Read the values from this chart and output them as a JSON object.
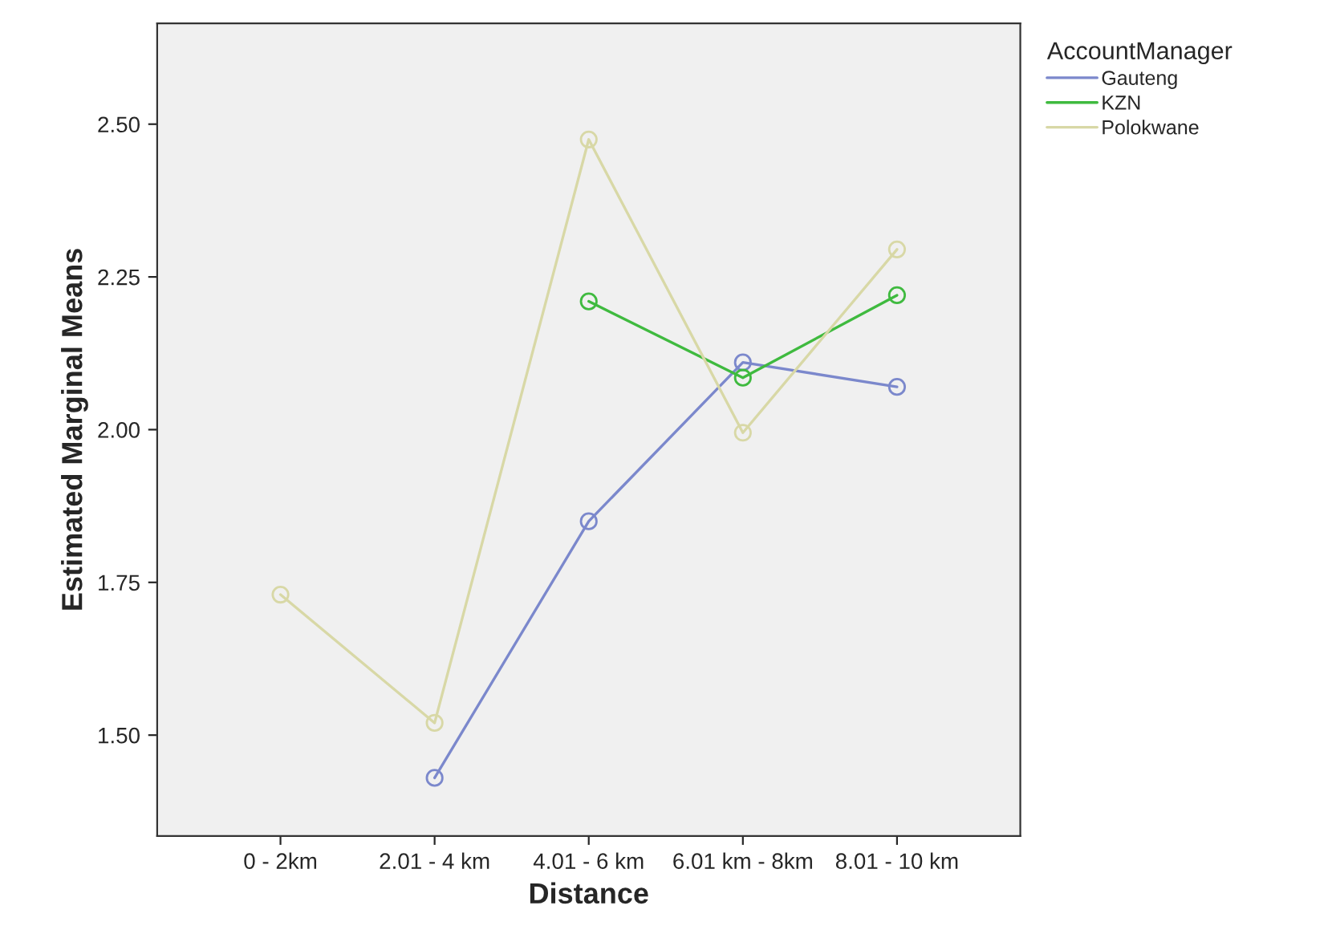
{
  "chart_data": {
    "type": "line",
    "xlabel": "Distance",
    "ylabel": "Estimated Marginal Means",
    "legend_title": "AccountManager",
    "categories": [
      "0 - 2km",
      "2.01 - 4 km",
      "4.01 - 6 km",
      "6.01 km - 8km",
      "8.01 - 10 km"
    ],
    "series": [
      {
        "name": "Gauteng",
        "color": "#7b88cc",
        "values": [
          null,
          1.43,
          1.85,
          2.11,
          2.07
        ]
      },
      {
        "name": "KZN",
        "color": "#3fba3f",
        "values": [
          null,
          null,
          2.21,
          2.085,
          2.22
        ]
      },
      {
        "name": "Polokwane",
        "color": "#d8d8a6",
        "values": [
          1.73,
          1.52,
          2.475,
          1.995,
          2.295
        ]
      }
    ],
    "ylim": [
      1.335,
      2.665
    ],
    "yticks": [
      {
        "value": 1.5,
        "label": "1.50"
      },
      {
        "value": 1.75,
        "label": "1.75"
      },
      {
        "value": 2.0,
        "label": "2.00"
      },
      {
        "value": 2.25,
        "label": "2.25"
      },
      {
        "value": 2.5,
        "label": "2.50"
      }
    ],
    "marker": "circle",
    "line_style": "solid",
    "grid": false,
    "legend": "top right"
  }
}
